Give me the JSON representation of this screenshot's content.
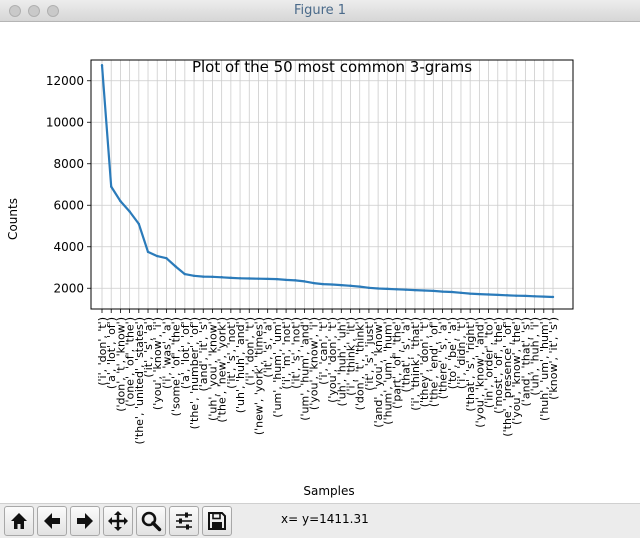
{
  "window": {
    "title": "Figure 1"
  },
  "toolbar": {
    "buttons": [
      {
        "name": "home-button",
        "icon": "home-icon"
      },
      {
        "name": "back-button",
        "icon": "arrow-left-icon"
      },
      {
        "name": "forward-button",
        "icon": "arrow-right-icon"
      },
      {
        "name": "pan-button",
        "icon": "move-icon"
      },
      {
        "name": "zoom-button",
        "icon": "magnifier-icon"
      },
      {
        "name": "configure-subplots-button",
        "icon": "sliders-icon"
      },
      {
        "name": "save-button",
        "icon": "floppy-disk-icon"
      }
    ],
    "coords": "x= y=1411.31"
  },
  "colors": {
    "line": "#2b7bba",
    "grid": "#cccccc",
    "background": "#ffffff"
  },
  "chart_data": {
    "type": "line",
    "title": "Plot of the 50 most common 3-grams",
    "xlabel": "Samples",
    "ylabel": "Counts",
    "ylim": [
      1000,
      13000
    ],
    "yticks": [
      2000,
      4000,
      6000,
      8000,
      10000,
      12000
    ],
    "ytick_labels": [
      "2000",
      "4000",
      "6000",
      "8000",
      "10000",
      "12000"
    ],
    "grid": true,
    "categories": [
      "('i', 'don', 't')",
      "('a', 'lot', 'of')",
      "('don', 't', 'know')",
      "('one', 'of', 'the')",
      "('the', 'united', 'states')",
      "('it', 's', 'a')",
      "('you', 'know', 'i')",
      "('i', 'was', 'a')",
      "('some', 'of', 'the')",
      "('a', 'lot', 'of')",
      "('the', 'number', 'of')",
      "('and', 'it', 's')",
      "('uh', 'you', 'know')",
      "('the', 'new', 'york')",
      "('it', 's', 'not')",
      "('uh', 'huh', 'and')",
      "('i', 'don', 't')",
      "('new', 'york', 'times')",
      "('it', 's', 'a')",
      "('um', 'hum', 'um')",
      "('i', 'm', 'not')",
      "('it', 's', 'not')",
      "('um', 'hum', 'and')",
      "('you', 'know', 'i')",
      "('i', 'can', 't')",
      "('you', 'don', 't')",
      "('uh', 'huh', 'uh')",
      "('i', 'think', 'it')",
      "('don', 't', 'think')",
      "('it', 's', 'just')",
      "('and', 'you', 'know')",
      "('hum', 'um', 'hum')",
      "('part', 'of', 'the')",
      "('that', 's', 'a')",
      "('i', 'think', 'that')",
      "('they', 'don', 't')",
      "('the', 'end', 'of')",
      "('there', 's', 'a')",
      "('to', 'be', 'a')",
      "('i', 'didn', 't')",
      "('that', 's', 'right')",
      "('you', 'know', 'and')",
      "('in', 'order', 'to')",
      "('most', 'of', 'the')",
      "('the', 'presence', 'of')",
      "('you', 'know', 'the')",
      "('and', 'that', 's')",
      "('uh', 'huh', 'i')",
      "('huh', 'um', 'hum')",
      "('know', 'it', 's')"
    ],
    "values": [
      12750,
      6900,
      6200,
      5700,
      5100,
      3750,
      3550,
      3450,
      3050,
      2680,
      2600,
      2560,
      2550,
      2530,
      2500,
      2480,
      2470,
      2460,
      2450,
      2440,
      2400,
      2380,
      2330,
      2250,
      2200,
      2180,
      2150,
      2120,
      2080,
      2020,
      1990,
      1970,
      1950,
      1930,
      1910,
      1890,
      1870,
      1840,
      1820,
      1780,
      1740,
      1720,
      1700,
      1680,
      1660,
      1640,
      1630,
      1610,
      1600,
      1580
    ]
  }
}
